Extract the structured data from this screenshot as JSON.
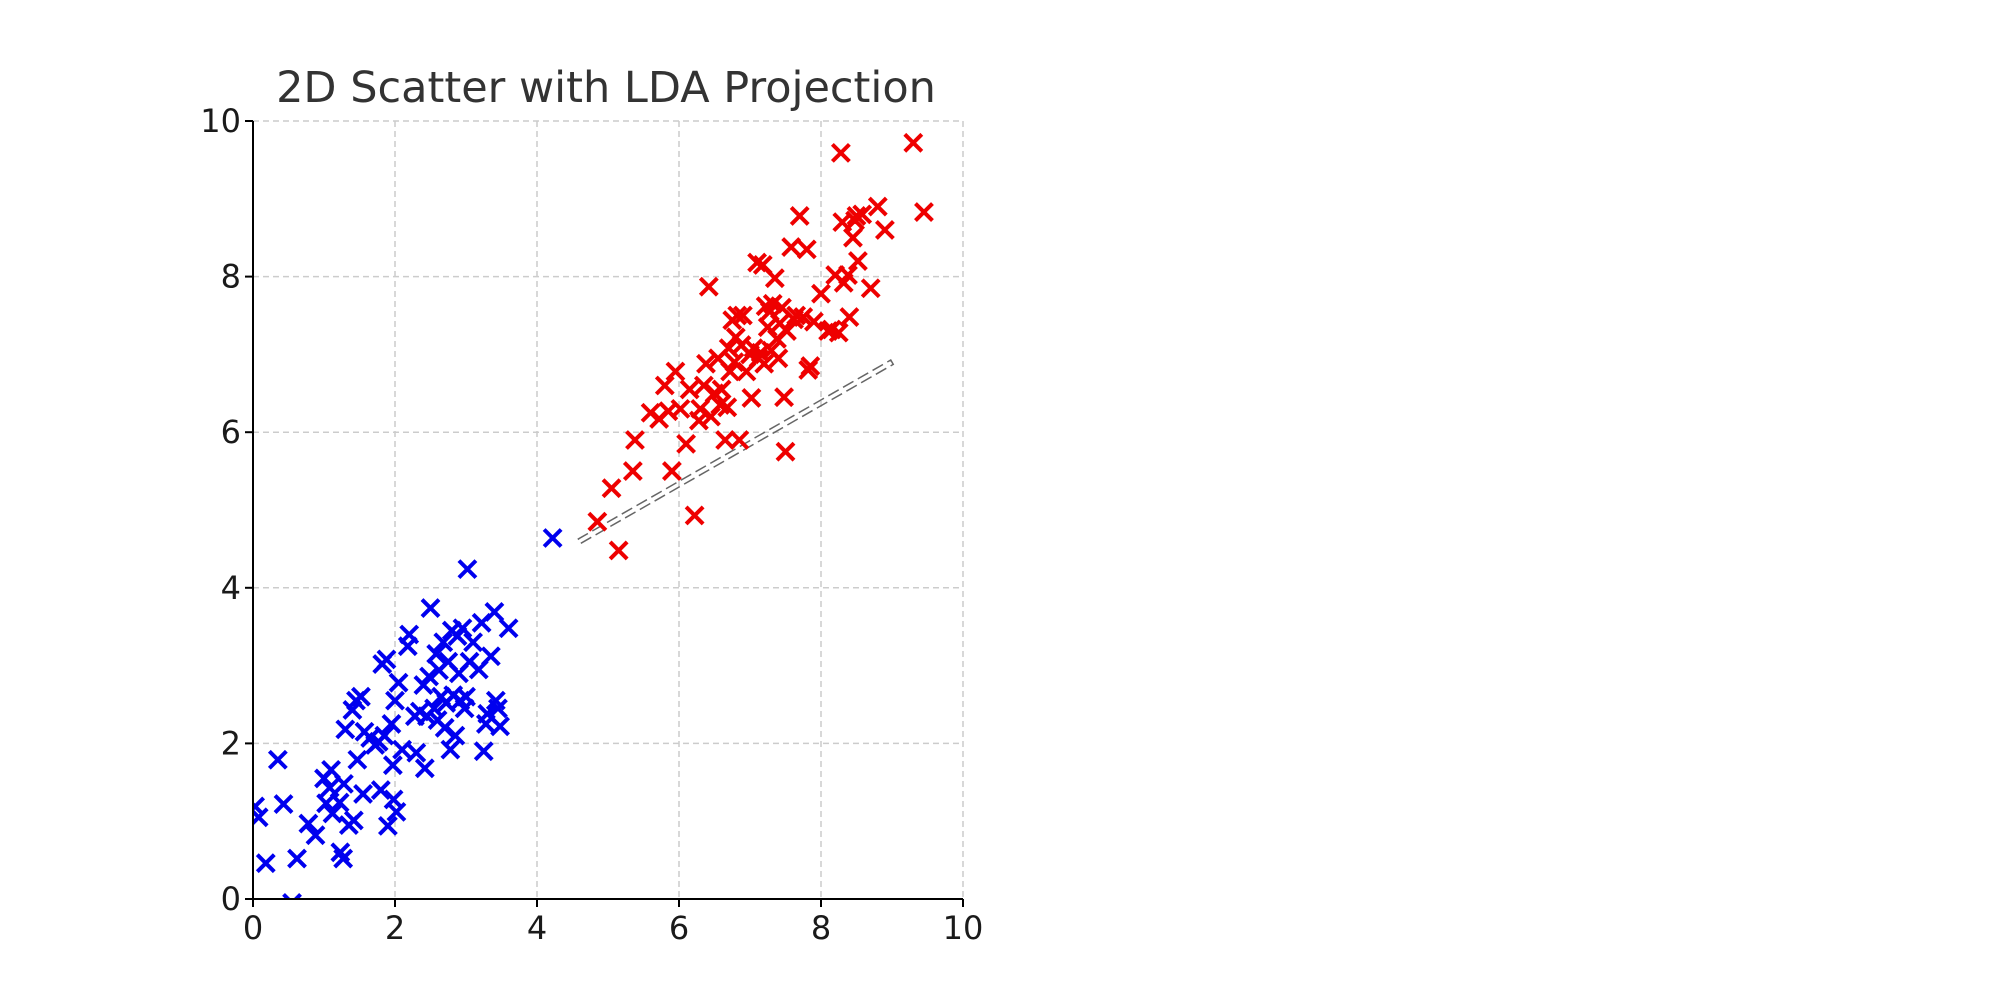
{
  "chart_data": {
    "type": "scatter",
    "title": "2D Scatter with LDA Projection",
    "xlabel": "",
    "ylabel": "",
    "xlim": [
      0,
      10
    ],
    "ylim": [
      0,
      10
    ],
    "x_ticks": [
      "0",
      "2",
      "4",
      "6",
      "8",
      "10"
    ],
    "y_ticks": [
      "0",
      "2",
      "4",
      "6",
      "8",
      "10"
    ],
    "grid": true,
    "marker": "x",
    "series": [
      {
        "color": "#0000ee",
        "points": [
          [
            0.03,
            1.19
          ],
          [
            0.08,
            1.05
          ],
          [
            0.18,
            0.46
          ],
          [
            0.35,
            1.79
          ],
          [
            0.43,
            1.22
          ],
          [
            0.55,
            -0.05
          ],
          [
            0.62,
            0.52
          ],
          [
            0.78,
            0.97
          ],
          [
            0.88,
            0.82
          ],
          [
            1.0,
            1.55
          ],
          [
            1.03,
            1.23
          ],
          [
            1.08,
            1.43
          ],
          [
            1.1,
            1.66
          ],
          [
            1.12,
            1.1
          ],
          [
            1.22,
            1.24
          ],
          [
            1.23,
            0.6
          ],
          [
            1.27,
            0.52
          ],
          [
            1.28,
            1.48
          ],
          [
            1.3,
            2.18
          ],
          [
            1.35,
            0.95
          ],
          [
            1.4,
            2.43
          ],
          [
            1.42,
            1.01
          ],
          [
            1.45,
            2.55
          ],
          [
            1.47,
            1.79
          ],
          [
            1.52,
            2.6
          ],
          [
            1.55,
            1.35
          ],
          [
            1.57,
            2.15
          ],
          [
            1.65,
            2.07
          ],
          [
            1.72,
            1.98
          ],
          [
            1.77,
            2.02
          ],
          [
            1.8,
            1.4
          ],
          [
            1.82,
            3.02
          ],
          [
            1.85,
            2.1
          ],
          [
            1.88,
            3.08
          ],
          [
            1.9,
            0.94
          ],
          [
            1.95,
            2.25
          ],
          [
            1.97,
            1.72
          ],
          [
            1.98,
            1.28
          ],
          [
            2.0,
            2.55
          ],
          [
            2.02,
            1.12
          ],
          [
            2.05,
            2.78
          ],
          [
            2.1,
            1.92
          ],
          [
            2.18,
            3.25
          ],
          [
            2.2,
            3.4
          ],
          [
            2.28,
            2.35
          ],
          [
            2.3,
            1.88
          ],
          [
            2.35,
            2.41
          ],
          [
            2.4,
            2.75
          ],
          [
            2.42,
            1.68
          ],
          [
            2.45,
            2.35
          ],
          [
            2.48,
            2.86
          ],
          [
            2.5,
            3.74
          ],
          [
            2.55,
            2.45
          ],
          [
            2.58,
            3.15
          ],
          [
            2.6,
            2.3
          ],
          [
            2.62,
            2.94
          ],
          [
            2.65,
            2.6
          ],
          [
            2.68,
            3.3
          ],
          [
            2.7,
            2.2
          ],
          [
            2.72,
            2.52
          ],
          [
            2.75,
            3.05
          ],
          [
            2.78,
            1.92
          ],
          [
            2.8,
            3.45
          ],
          [
            2.82,
            2.62
          ],
          [
            2.85,
            2.1
          ],
          [
            2.88,
            3.38
          ],
          [
            2.9,
            2.9
          ],
          [
            2.92,
            2.55
          ],
          [
            2.95,
            3.48
          ],
          [
            2.98,
            2.45
          ],
          [
            3.0,
            2.6
          ],
          [
            3.02,
            4.24
          ],
          [
            3.05,
            3.05
          ],
          [
            3.1,
            3.3
          ],
          [
            3.18,
            2.95
          ],
          [
            3.22,
            3.55
          ],
          [
            3.25,
            1.9
          ],
          [
            3.28,
            2.25
          ],
          [
            3.3,
            2.38
          ],
          [
            3.35,
            3.12
          ],
          [
            3.4,
            3.69
          ],
          [
            3.42,
            2.55
          ],
          [
            3.45,
            2.45
          ],
          [
            3.48,
            2.22
          ],
          [
            3.6,
            3.48
          ],
          [
            4.22,
            4.64
          ]
        ]
      },
      {
        "color": "#ee0000",
        "points": [
          [
            4.85,
            4.85
          ],
          [
            5.05,
            5.28
          ],
          [
            5.15,
            4.48
          ],
          [
            5.35,
            5.5
          ],
          [
            5.38,
            5.9
          ],
          [
            5.6,
            6.25
          ],
          [
            5.72,
            6.17
          ],
          [
            5.8,
            6.6
          ],
          [
            5.85,
            6.27
          ],
          [
            5.9,
            5.5
          ],
          [
            5.95,
            6.78
          ],
          [
            6.02,
            6.3
          ],
          [
            6.1,
            5.85
          ],
          [
            6.15,
            6.55
          ],
          [
            6.22,
            4.93
          ],
          [
            6.28,
            6.15
          ],
          [
            6.3,
            6.3
          ],
          [
            6.35,
            6.6
          ],
          [
            6.38,
            6.88
          ],
          [
            6.42,
            7.87
          ],
          [
            6.45,
            6.2
          ],
          [
            6.5,
            6.5
          ],
          [
            6.55,
            6.95
          ],
          [
            6.58,
            6.35
          ],
          [
            6.6,
            6.55
          ],
          [
            6.65,
            5.9
          ],
          [
            6.68,
            6.32
          ],
          [
            6.7,
            7.08
          ],
          [
            6.72,
            6.78
          ],
          [
            6.75,
            7.44
          ],
          [
            6.78,
            6.9
          ],
          [
            6.8,
            7.22
          ],
          [
            6.82,
            7.5
          ],
          [
            6.85,
            5.9
          ],
          [
            6.88,
            7.12
          ],
          [
            6.9,
            7.5
          ],
          [
            6.95,
            6.78
          ],
          [
            7.0,
            7.0
          ],
          [
            7.02,
            6.44
          ],
          [
            7.05,
            7.08
          ],
          [
            7.1,
            8.18
          ],
          [
            7.12,
            6.95
          ],
          [
            7.15,
            7.02
          ],
          [
            7.18,
            8.15
          ],
          [
            7.2,
            6.88
          ],
          [
            7.22,
            7.62
          ],
          [
            7.25,
            7.35
          ],
          [
            7.28,
            7.55
          ],
          [
            7.3,
            7.05
          ],
          [
            7.32,
            7.65
          ],
          [
            7.35,
            7.98
          ],
          [
            7.38,
            7.2
          ],
          [
            7.4,
            6.95
          ],
          [
            7.42,
            7.4
          ],
          [
            7.45,
            7.6
          ],
          [
            7.48,
            6.45
          ],
          [
            7.5,
            5.75
          ],
          [
            7.52,
            7.3
          ],
          [
            7.58,
            8.38
          ],
          [
            7.62,
            7.45
          ],
          [
            7.65,
            7.5
          ],
          [
            7.7,
            8.78
          ],
          [
            7.75,
            7.48
          ],
          [
            7.8,
            8.35
          ],
          [
            7.82,
            6.8
          ],
          [
            7.85,
            6.85
          ],
          [
            7.9,
            7.42
          ],
          [
            8.0,
            7.78
          ],
          [
            8.1,
            7.3
          ],
          [
            8.15,
            7.32
          ],
          [
            8.2,
            8.02
          ],
          [
            8.25,
            7.28
          ],
          [
            8.28,
            9.59
          ],
          [
            8.3,
            8.7
          ],
          [
            8.32,
            7.92
          ],
          [
            8.38,
            8.02
          ],
          [
            8.4,
            7.48
          ],
          [
            8.45,
            8.5
          ],
          [
            8.48,
            8.72
          ],
          [
            8.5,
            8.78
          ],
          [
            8.52,
            8.2
          ],
          [
            8.58,
            8.8
          ],
          [
            8.7,
            7.85
          ],
          [
            8.8,
            8.9
          ],
          [
            8.9,
            8.6
          ],
          [
            9.3,
            9.72
          ],
          [
            9.45,
            8.83
          ]
        ]
      }
    ],
    "projection_line": {
      "style": "dashed",
      "color": "#666666",
      "x": [
        4.6,
        9.0
      ],
      "y": [
        4.6,
        6.9
      ]
    }
  }
}
